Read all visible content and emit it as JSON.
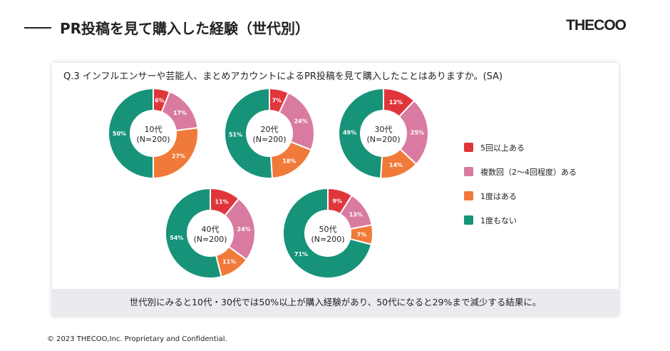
{
  "header": {
    "title": "PR投稿を見て購入した経験（世代別）",
    "logo": "THECOO"
  },
  "chart_data": {
    "type": "pie",
    "variant": "donut",
    "title": "Q.3 インフルエンサーや芸能人、まとめアカウントによるPR投稿を見て購入したことはありますか。(SA)",
    "categories": [
      "5回以上ある",
      "複数回（2〜4回程度）ある",
      "1度はある",
      "1度もない"
    ],
    "colors": [
      "#e0363b",
      "#d97ba0",
      "#f07a3a",
      "#17937a"
    ],
    "legend_position": "right",
    "groups": [
      {
        "label": "10代",
        "n": "(N=200)",
        "values": [
          6,
          17,
          27,
          50
        ]
      },
      {
        "label": "20代",
        "n": "(N=200)",
        "values": [
          7,
          24,
          18,
          51
        ]
      },
      {
        "label": "30代",
        "n": "(N=200)",
        "values": [
          12,
          25,
          14,
          49
        ]
      },
      {
        "label": "40代",
        "n": "(N=200)",
        "values": [
          11,
          24,
          11,
          54
        ]
      },
      {
        "label": "50代",
        "n": "(N=200)",
        "values": [
          9,
          13,
          7,
          71
        ]
      }
    ]
  },
  "caption": "世代別にみると10代・30代では50%以上が購入経験があり、50代になると29%まで減少する結果に。",
  "footer": "© 2023 THECOO,Inc. Proprietary and Confidential."
}
